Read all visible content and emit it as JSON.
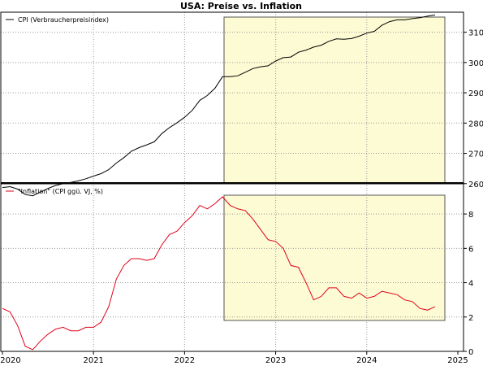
{
  "chart_data": {
    "type": "line",
    "title": "USA: Preise vs. Inflation",
    "x_ticks": [
      "2020",
      "2021",
      "2022",
      "2023",
      "2024",
      "2025"
    ],
    "highlight": {
      "start": "2022-06",
      "end": "2024-09",
      "color": "#fdfbd3"
    },
    "panels": [
      {
        "id": "cpi",
        "legend": "CPI (Verbraucherpreisindex)",
        "color": "#000000",
        "ylim": [
          250,
          315
        ],
        "yticks": [
          "260",
          "270",
          "280",
          "290",
          "300",
          "310"
        ],
        "series": [
          {
            "x": "2020-01",
            "y": 258.7
          },
          {
            "x": "2020-02",
            "y": 259.0
          },
          {
            "x": "2020-03",
            "y": 258.2
          },
          {
            "x": "2020-04",
            "y": 256.4
          },
          {
            "x": "2020-05",
            "y": 256.0
          },
          {
            "x": "2020-06",
            "y": 257.2
          },
          {
            "x": "2020-07",
            "y": 258.4
          },
          {
            "x": "2020-08",
            "y": 259.4
          },
          {
            "x": "2020-09",
            "y": 260.0
          },
          {
            "x": "2020-10",
            "y": 260.4
          },
          {
            "x": "2020-11",
            "y": 260.9
          },
          {
            "x": "2020-12",
            "y": 261.6
          },
          {
            "x": "2021-01",
            "y": 262.5
          },
          {
            "x": "2021-02",
            "y": 263.3
          },
          {
            "x": "2021-03",
            "y": 264.6
          },
          {
            "x": "2021-04",
            "y": 266.8
          },
          {
            "x": "2021-05",
            "y": 268.6
          },
          {
            "x": "2021-06",
            "y": 270.7
          },
          {
            "x": "2021-07",
            "y": 271.9
          },
          {
            "x": "2021-08",
            "y": 272.8
          },
          {
            "x": "2021-09",
            "y": 273.8
          },
          {
            "x": "2021-10",
            "y": 276.5
          },
          {
            "x": "2021-11",
            "y": 278.5
          },
          {
            "x": "2021-12",
            "y": 280.1
          },
          {
            "x": "2022-01",
            "y": 281.9
          },
          {
            "x": "2022-02",
            "y": 284.2
          },
          {
            "x": "2022-03",
            "y": 287.5
          },
          {
            "x": "2022-04",
            "y": 289.1
          },
          {
            "x": "2022-05",
            "y": 291.5
          },
          {
            "x": "2022-06",
            "y": 295.3
          },
          {
            "x": "2022-07",
            "y": 295.3
          },
          {
            "x": "2022-08",
            "y": 295.6
          },
          {
            "x": "2022-09",
            "y": 296.8
          },
          {
            "x": "2022-10",
            "y": 298.0
          },
          {
            "x": "2022-11",
            "y": 298.6
          },
          {
            "x": "2022-12",
            "y": 298.9
          },
          {
            "x": "2023-01",
            "y": 300.5
          },
          {
            "x": "2023-02",
            "y": 301.6
          },
          {
            "x": "2023-03",
            "y": 301.8
          },
          {
            "x": "2023-04",
            "y": 303.4
          },
          {
            "x": "2023-05",
            "y": 304.1
          },
          {
            "x": "2023-06",
            "y": 305.1
          },
          {
            "x": "2023-07",
            "y": 305.7
          },
          {
            "x": "2023-08",
            "y": 307.0
          },
          {
            "x": "2023-09",
            "y": 307.8
          },
          {
            "x": "2023-10",
            "y": 307.7
          },
          {
            "x": "2023-11",
            "y": 307.9
          },
          {
            "x": "2023-12",
            "y": 308.7
          },
          {
            "x": "2024-01",
            "y": 309.7
          },
          {
            "x": "2024-02",
            "y": 310.3
          },
          {
            "x": "2024-03",
            "y": 312.3
          },
          {
            "x": "2024-04",
            "y": 313.5
          },
          {
            "x": "2024-05",
            "y": 314.1
          },
          {
            "x": "2024-06",
            "y": 314.1
          },
          {
            "x": "2024-07",
            "y": 314.5
          },
          {
            "x": "2024-08",
            "y": 314.8
          },
          {
            "x": "2024-09",
            "y": 315.3
          },
          {
            "x": "2024-10",
            "y": 315.7
          }
        ]
      },
      {
        "id": "inflation",
        "legend": "\"Inflation\" (CPI ggü. VJ, %)",
        "color": "#e0001a",
        "ylim": [
          0,
          9
        ],
        "yticks": [
          "0",
          "2",
          "4",
          "6",
          "8"
        ],
        "series": [
          {
            "x": "2020-01",
            "y": 2.5
          },
          {
            "x": "2020-02",
            "y": 2.3
          },
          {
            "x": "2020-03",
            "y": 1.5
          },
          {
            "x": "2020-04",
            "y": 0.3
          },
          {
            "x": "2020-05",
            "y": 0.1
          },
          {
            "x": "2020-06",
            "y": 0.6
          },
          {
            "x": "2020-07",
            "y": 1.0
          },
          {
            "x": "2020-08",
            "y": 1.3
          },
          {
            "x": "2020-09",
            "y": 1.4
          },
          {
            "x": "2020-10",
            "y": 1.2
          },
          {
            "x": "2020-11",
            "y": 1.2
          },
          {
            "x": "2020-12",
            "y": 1.4
          },
          {
            "x": "2021-01",
            "y": 1.4
          },
          {
            "x": "2021-02",
            "y": 1.7
          },
          {
            "x": "2021-03",
            "y": 2.6
          },
          {
            "x": "2021-04",
            "y": 4.2
          },
          {
            "x": "2021-05",
            "y": 5.0
          },
          {
            "x": "2021-06",
            "y": 5.4
          },
          {
            "x": "2021-07",
            "y": 5.4
          },
          {
            "x": "2021-08",
            "y": 5.3
          },
          {
            "x": "2021-09",
            "y": 5.4
          },
          {
            "x": "2021-10",
            "y": 6.2
          },
          {
            "x": "2021-11",
            "y": 6.8
          },
          {
            "x": "2021-12",
            "y": 7.0
          },
          {
            "x": "2022-01",
            "y": 7.5
          },
          {
            "x": "2022-02",
            "y": 7.9
          },
          {
            "x": "2022-03",
            "y": 8.5
          },
          {
            "x": "2022-04",
            "y": 8.3
          },
          {
            "x": "2022-05",
            "y": 8.6
          },
          {
            "x": "2022-06",
            "y": 9.0
          },
          {
            "x": "2022-07",
            "y": 8.5
          },
          {
            "x": "2022-08",
            "y": 8.3
          },
          {
            "x": "2022-09",
            "y": 8.2
          },
          {
            "x": "2022-10",
            "y": 7.7
          },
          {
            "x": "2022-11",
            "y": 7.1
          },
          {
            "x": "2022-12",
            "y": 6.5
          },
          {
            "x": "2023-01",
            "y": 6.4
          },
          {
            "x": "2023-02",
            "y": 6.0
          },
          {
            "x": "2023-03",
            "y": 5.0
          },
          {
            "x": "2023-04",
            "y": 4.9
          },
          {
            "x": "2023-05",
            "y": 4.0
          },
          {
            "x": "2023-06",
            "y": 3.0
          },
          {
            "x": "2023-07",
            "y": 3.2
          },
          {
            "x": "2023-08",
            "y": 3.7
          },
          {
            "x": "2023-09",
            "y": 3.7
          },
          {
            "x": "2023-10",
            "y": 3.2
          },
          {
            "x": "2023-11",
            "y": 3.1
          },
          {
            "x": "2023-12",
            "y": 3.4
          },
          {
            "x": "2024-01",
            "y": 3.1
          },
          {
            "x": "2024-02",
            "y": 3.2
          },
          {
            "x": "2024-03",
            "y": 3.5
          },
          {
            "x": "2024-04",
            "y": 3.4
          },
          {
            "x": "2024-05",
            "y": 3.3
          },
          {
            "x": "2024-06",
            "y": 3.0
          },
          {
            "x": "2024-07",
            "y": 2.9
          },
          {
            "x": "2024-08",
            "y": 2.5
          },
          {
            "x": "2024-09",
            "y": 2.4
          },
          {
            "x": "2024-10",
            "y": 2.6
          }
        ]
      }
    ]
  }
}
